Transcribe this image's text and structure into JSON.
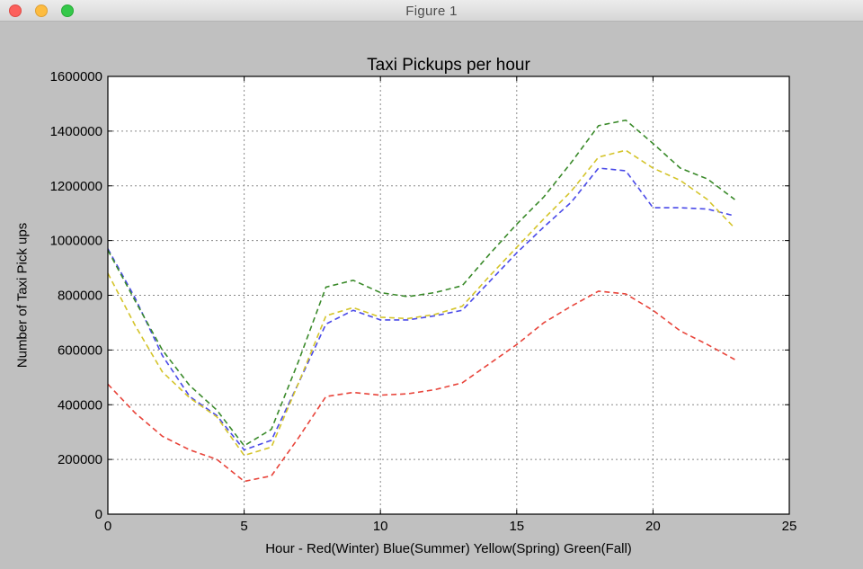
{
  "window": {
    "title": "Figure 1"
  },
  "chart_data": {
    "type": "line",
    "title": "Taxi Pickups per hour",
    "xlabel": "Hour - Red(Winter) Blue(Summer) Yellow(Spring) Green(Fall)",
    "ylabel": "Number of Taxi Pick ups",
    "xlim": [
      0,
      25
    ],
    "ylim": [
      0,
      1600000
    ],
    "xticks": [
      0,
      5,
      10,
      15,
      20,
      25
    ],
    "yticks": [
      0,
      200000,
      400000,
      600000,
      800000,
      1000000,
      1200000,
      1400000,
      1600000
    ],
    "grid": true,
    "line_style": "dashed",
    "x": [
      0,
      1,
      2,
      3,
      4,
      5,
      6,
      7,
      8,
      9,
      10,
      11,
      12,
      13,
      14,
      15,
      16,
      17,
      18,
      19,
      20,
      21,
      22,
      23
    ],
    "series": [
      {
        "color": "#e8443a",
        "values": [
          475000,
          370000,
          285000,
          235000,
          200000,
          120000,
          140000,
          280000,
          430000,
          445000,
          435000,
          440000,
          455000,
          480000,
          550000,
          620000,
          700000,
          760000,
          815000,
          805000,
          745000,
          670000,
          620000,
          565000
        ]
      },
      {
        "color": "#4a4ae8",
        "values": [
          970000,
          790000,
          580000,
          430000,
          360000,
          235000,
          270000,
          480000,
          695000,
          745000,
          710000,
          710000,
          725000,
          745000,
          850000,
          955000,
          1050000,
          1140000,
          1265000,
          1255000,
          1120000,
          1120000,
          1115000,
          1090000
        ]
      },
      {
        "color": "#d4c42a",
        "values": [
          880000,
          690000,
          520000,
          425000,
          355000,
          215000,
          245000,
          480000,
          725000,
          755000,
          720000,
          715000,
          730000,
          760000,
          870000,
          975000,
          1080000,
          1180000,
          1305000,
          1330000,
          1265000,
          1220000,
          1150000,
          1045000
        ]
      },
      {
        "color": "#3a8a2a",
        "values": [
          965000,
          780000,
          600000,
          470000,
          380000,
          250000,
          310000,
          560000,
          830000,
          855000,
          810000,
          795000,
          810000,
          835000,
          950000,
          1060000,
          1160000,
          1285000,
          1420000,
          1440000,
          1355000,
          1265000,
          1225000,
          1150000
        ]
      }
    ]
  }
}
